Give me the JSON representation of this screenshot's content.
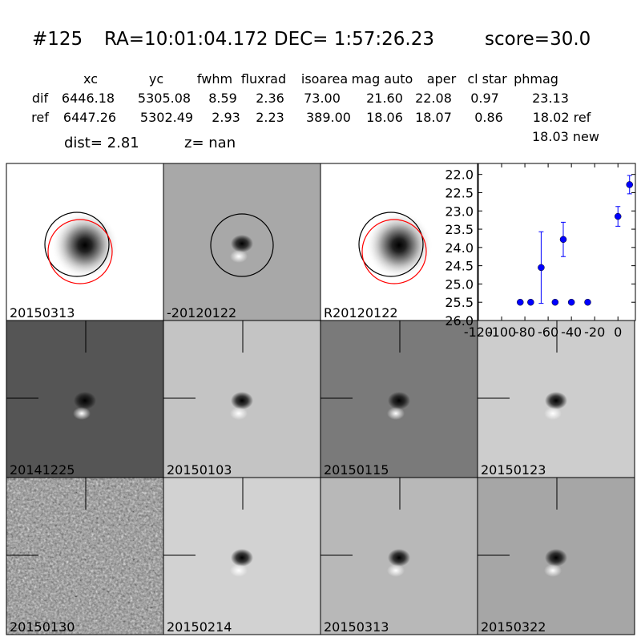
{
  "header": {
    "id": "#125",
    "coords": "RA=10:01:04.172 DEC= 1:57:26.23",
    "score": "score=30.0"
  },
  "table": {
    "columns": [
      "xc",
      "yc",
      "fwhm",
      "fluxrad",
      "isoarea",
      "mag auto",
      "aper",
      "cl star",
      "phmag"
    ],
    "rows": [
      [
        "dif",
        "6446.18",
        "5305.08",
        "8.59",
        "2.36",
        "73.00",
        "21.60",
        "22.08",
        "0.97",
        "23.13"
      ],
      [
        "ref",
        "6447.26",
        "5302.49",
        "2.93",
        "2.23",
        "389.00",
        "18.06",
        "18.07",
        "0.86",
        "18.02 ref"
      ]
    ],
    "note": "18.03 new"
  },
  "dist": {
    "dist": "dist=  2.81",
    "z": "z=   nan"
  },
  "panels": [
    "20150313",
    "-20120122",
    "R20120122",
    "20141225",
    "20150103",
    "20150115",
    "20150123",
    "20150130",
    "20150214",
    "20150313",
    "20150322"
  ],
  "chart_data": {
    "type": "errorbar",
    "color": "#0000ff",
    "x": [
      -84,
      -75,
      -66,
      -54,
      -47,
      -40,
      -26,
      0,
      10
    ],
    "values": [
      25.5,
      25.5,
      24.55,
      25.5,
      23.78,
      25.5,
      25.5,
      23.15,
      22.28
    ],
    "errors": [
      0.05,
      0.05,
      0.98,
      0.05,
      0.47,
      0.05,
      0.05,
      0.27,
      0.25
    ],
    "xlim": [
      -120,
      15
    ],
    "xticks": [
      -120,
      -100,
      -80,
      -60,
      -40,
      -20,
      0
    ],
    "ylim": [
      26.0,
      21.7
    ],
    "yticks": [
      {
        "value": 22.0,
        "label": "22.0"
      },
      {
        "value": 22.5,
        "label": "22.5"
      },
      {
        "value": 23.0,
        "label": "23.0"
      },
      {
        "value": 23.5,
        "label": "23.5"
      },
      {
        "value": 24.0,
        "label": "24.0"
      },
      {
        "value": 24.5,
        "label": "24.5"
      },
      {
        "value": 25.0,
        "label": "25.0"
      },
      {
        "value": 25.5,
        "label": "25.5"
      },
      {
        "value": 26.0,
        "label": "26.0"
      }
    ]
  }
}
